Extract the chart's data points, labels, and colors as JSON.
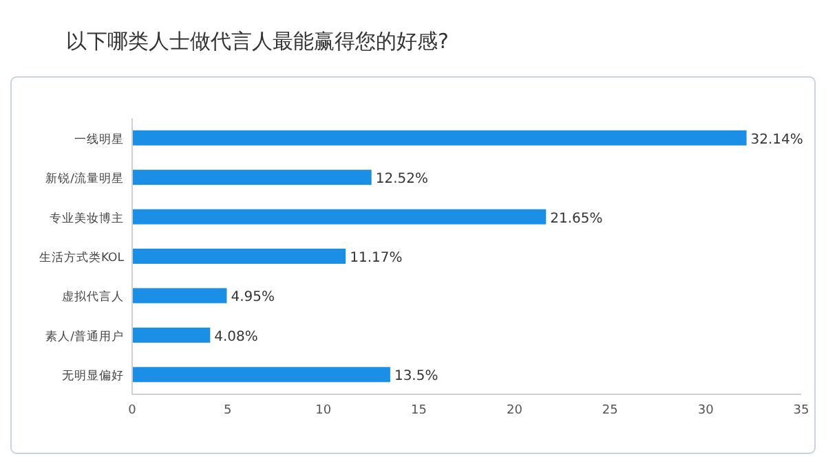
{
  "chart_data": {
    "type": "bar",
    "orientation": "horizontal",
    "title": "以下哪类人士做代言人最能赢得您的好感?",
    "categories": [
      "一线明星",
      "新锐/流量明星",
      "专业美妆博主",
      "生活方式类KOL",
      "虚拟代言人",
      "素人/普通用户",
      "无明显偏好"
    ],
    "values": [
      32.14,
      12.52,
      21.65,
      11.17,
      4.95,
      4.08,
      13.5
    ],
    "value_labels": [
      "32.14%",
      "12.52%",
      "21.65%",
      "11.17%",
      "4.95%",
      "4.08%",
      "13.5%"
    ],
    "color": "#1b8fe6",
    "xlim": [
      0,
      35
    ],
    "xticks": [
      0,
      5,
      10,
      15,
      20,
      25,
      30,
      35
    ],
    "grid": false
  }
}
